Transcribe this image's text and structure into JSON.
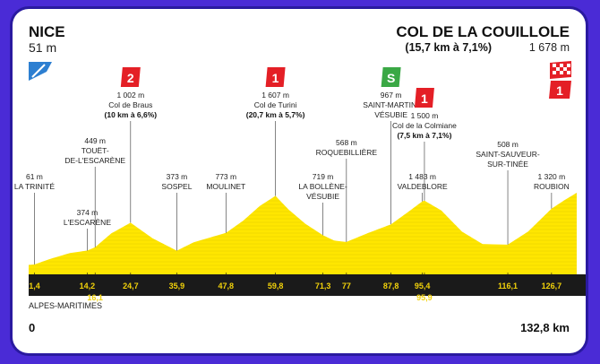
{
  "start": {
    "name": "NICE",
    "altitude": "51 m"
  },
  "finish": {
    "name": "COL DE LA COUILLOLE",
    "climb": "(15,7 km à 7,1%)",
    "altitude": "1 678 m"
  },
  "region": "ALPES-MARITIMES",
  "distance_start": "0",
  "distance_end": "132,8 km",
  "colors": {
    "fill": "#ffe600",
    "band": "#1a1a1a",
    "km_text": "#f2d20a",
    "frame": "#4a2bd6",
    "climb_badge": "#e41f26",
    "sprint_badge": "#3aa845",
    "start_marker": "#2d7fd1"
  },
  "chart_data": {
    "type": "area",
    "xlabel": "km",
    "ylabel": "altitude (m)",
    "xlim": [
      0,
      132.8
    ],
    "profile": {
      "x": [
        0,
        1.4,
        5,
        10,
        14.2,
        16.1,
        20,
        24.7,
        30,
        35.9,
        40,
        47.8,
        52,
        56,
        59.8,
        63,
        67,
        71.3,
        74,
        77,
        82,
        87.8,
        92,
        95.4,
        95.9,
        100,
        105,
        110,
        116.1,
        121,
        126.7,
        130,
        132.8
      ],
      "y": [
        51,
        61,
        180,
        320,
        374,
        449,
        760,
        1002,
        650,
        373,
        560,
        773,
        1050,
        1380,
        1607,
        1300,
        980,
        719,
        600,
        568,
        760,
        967,
        1250,
        1483,
        1500,
        1280,
        800,
        520,
        508,
        800,
        1320,
        1520,
        1678
      ]
    },
    "km_markers": [
      "1,4",
      "14,2",
      "16,1",
      "24,7",
      "35,9",
      "47,8",
      "59,8",
      "71,3",
      "77",
      "87,8",
      "95,4",
      "95,9",
      "116,1",
      "126,7"
    ],
    "points": [
      {
        "alt": "61 m",
        "name": "LA TRINITÉ"
      },
      {
        "alt": "374 m",
        "name": "L'ESCARÈNE"
      },
      {
        "alt": "449 m",
        "name": "TOUËT-DE-L'ESCARÈNE"
      },
      {
        "alt": "1 002 m",
        "name": "Col de Braus",
        "climb": "(10 km à 6,6%)",
        "category": "2"
      },
      {
        "alt": "373 m",
        "name": "SOSPEL"
      },
      {
        "alt": "773 m",
        "name": "MOULINET"
      },
      {
        "alt": "1 607 m",
        "name": "Col de Turini",
        "climb": "(20,7 km à 5,7%)",
        "category": "1"
      },
      {
        "alt": "719 m",
        "name": "LA BOLLÈNE-VÉSUBIE"
      },
      {
        "alt": "568 m",
        "name": "ROQUEBILLIÈRE"
      },
      {
        "alt": "967 m",
        "name": "SAINT-MARTIN-VÉSUBIE",
        "badge": "S"
      },
      {
        "alt": "1 483 m",
        "name": "VALDEBLORE"
      },
      {
        "alt": "1 500 m",
        "name": "Col de la Colmiane",
        "climb": "(7,5 km à 7,1%)",
        "category": "1"
      },
      {
        "alt": "508 m",
        "name": "SAINT-SAUVEUR-SUR-TINÉE"
      },
      {
        "alt": "1 320 m",
        "name": "ROUBION"
      }
    ],
    "finish_category": "1"
  }
}
